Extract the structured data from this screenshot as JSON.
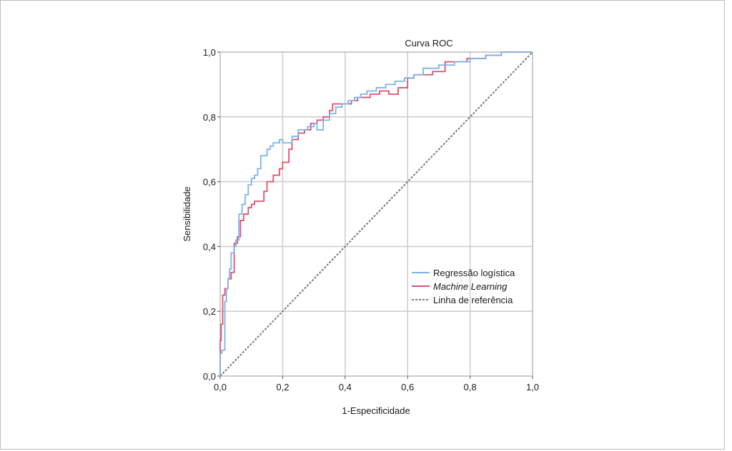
{
  "chart_data": {
    "type": "line",
    "title": "Curva ROC",
    "xlabel": "1-Especificidade",
    "ylabel": "Sensibilidade",
    "xlim": [
      0,
      1
    ],
    "ylim": [
      0,
      1
    ],
    "x_ticks": [
      "0,0",
      "0,2",
      "0,4",
      "0,6",
      "0,8",
      "1,0"
    ],
    "y_ticks": [
      "0,0",
      "0,2",
      "0,4",
      "0,6",
      "0,8",
      "1,0"
    ],
    "grid": true,
    "legend_position": "lower-right",
    "series": [
      {
        "name": "Regressão logística",
        "color": "#7fb2e5",
        "style": "solid",
        "x": [
          0.0,
          0.0,
          0.005,
          0.005,
          0.015,
          0.015,
          0.02,
          0.02,
          0.025,
          0.025,
          0.03,
          0.03,
          0.035,
          0.035,
          0.045,
          0.045,
          0.05,
          0.05,
          0.06,
          0.06,
          0.07,
          0.07,
          0.08,
          0.08,
          0.09,
          0.09,
          0.1,
          0.1,
          0.11,
          0.11,
          0.12,
          0.12,
          0.13,
          0.13,
          0.15,
          0.15,
          0.16,
          0.16,
          0.17,
          0.17,
          0.19,
          0.19,
          0.2,
          0.2,
          0.23,
          0.23,
          0.25,
          0.25,
          0.28,
          0.28,
          0.3,
          0.3,
          0.31,
          0.31,
          0.33,
          0.33,
          0.35,
          0.35,
          0.37,
          0.37,
          0.39,
          0.39,
          0.41,
          0.41,
          0.43,
          0.43,
          0.45,
          0.45,
          0.47,
          0.47,
          0.5,
          0.5,
          0.53,
          0.53,
          0.56,
          0.56,
          0.59,
          0.59,
          0.62,
          0.62,
          0.65,
          0.65,
          0.7,
          0.7,
          0.75,
          0.75,
          0.8,
          0.8,
          0.85,
          0.85,
          0.9,
          0.9,
          0.95,
          1.0
        ],
        "y": [
          0.0,
          0.07,
          0.07,
          0.08,
          0.08,
          0.23,
          0.23,
          0.27,
          0.27,
          0.3,
          0.3,
          0.33,
          0.33,
          0.38,
          0.38,
          0.4,
          0.4,
          0.42,
          0.42,
          0.5,
          0.5,
          0.53,
          0.53,
          0.56,
          0.56,
          0.59,
          0.59,
          0.61,
          0.61,
          0.62,
          0.62,
          0.64,
          0.64,
          0.68,
          0.68,
          0.7,
          0.7,
          0.71,
          0.71,
          0.72,
          0.72,
          0.73,
          0.73,
          0.72,
          0.72,
          0.74,
          0.74,
          0.76,
          0.76,
          0.77,
          0.77,
          0.78,
          0.78,
          0.76,
          0.76,
          0.79,
          0.79,
          0.81,
          0.81,
          0.83,
          0.83,
          0.84,
          0.84,
          0.85,
          0.85,
          0.86,
          0.86,
          0.87,
          0.87,
          0.88,
          0.88,
          0.89,
          0.89,
          0.9,
          0.9,
          0.91,
          0.91,
          0.92,
          0.92,
          0.93,
          0.93,
          0.95,
          0.95,
          0.96,
          0.96,
          0.97,
          0.97,
          0.98,
          0.98,
          0.99,
          0.99,
          1.0,
          1.0,
          1.0
        ]
      },
      {
        "name": "Machine Learning",
        "color": "#e0506e",
        "style": "solid",
        "x": [
          0.0,
          0.0,
          0.003,
          0.003,
          0.008,
          0.008,
          0.015,
          0.015,
          0.025,
          0.025,
          0.035,
          0.035,
          0.045,
          0.045,
          0.055,
          0.055,
          0.065,
          0.065,
          0.075,
          0.075,
          0.09,
          0.09,
          0.1,
          0.1,
          0.11,
          0.11,
          0.14,
          0.14,
          0.15,
          0.15,
          0.17,
          0.17,
          0.19,
          0.19,
          0.2,
          0.2,
          0.22,
          0.22,
          0.23,
          0.23,
          0.25,
          0.25,
          0.27,
          0.27,
          0.29,
          0.29,
          0.31,
          0.31,
          0.33,
          0.33,
          0.35,
          0.35,
          0.36,
          0.36,
          0.42,
          0.42,
          0.44,
          0.44,
          0.48,
          0.48,
          0.51,
          0.51,
          0.54,
          0.54,
          0.57,
          0.57,
          0.6,
          0.6,
          0.62,
          0.62,
          0.68,
          0.68,
          0.72,
          0.72,
          0.79,
          0.79,
          0.85,
          0.85,
          0.9,
          0.9,
          1.0
        ],
        "y": [
          0.0,
          0.11,
          0.11,
          0.16,
          0.16,
          0.25,
          0.25,
          0.27,
          0.27,
          0.3,
          0.3,
          0.32,
          0.32,
          0.41,
          0.41,
          0.43,
          0.43,
          0.48,
          0.48,
          0.5,
          0.5,
          0.52,
          0.52,
          0.53,
          0.53,
          0.54,
          0.54,
          0.57,
          0.57,
          0.6,
          0.6,
          0.62,
          0.62,
          0.64,
          0.64,
          0.66,
          0.66,
          0.7,
          0.7,
          0.73,
          0.73,
          0.75,
          0.75,
          0.76,
          0.76,
          0.78,
          0.78,
          0.79,
          0.79,
          0.8,
          0.8,
          0.82,
          0.82,
          0.84,
          0.84,
          0.85,
          0.85,
          0.86,
          0.86,
          0.87,
          0.87,
          0.88,
          0.88,
          0.87,
          0.87,
          0.89,
          0.89,
          0.92,
          0.92,
          0.93,
          0.93,
          0.94,
          0.94,
          0.97,
          0.97,
          0.98,
          0.98,
          0.99,
          0.99,
          1.0,
          1.0
        ]
      },
      {
        "name": "Linha de referência",
        "color": "#7a7a7a",
        "style": "dashed",
        "x": [
          0,
          1
        ],
        "y": [
          0,
          1
        ]
      }
    ]
  }
}
